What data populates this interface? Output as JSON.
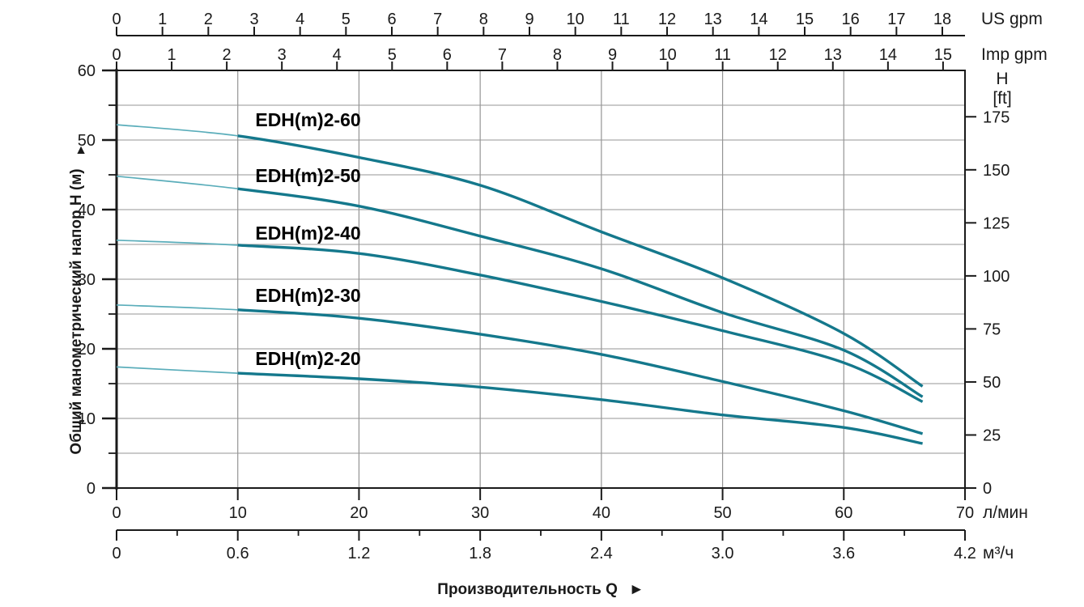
{
  "chart_data": {
    "type": "line",
    "title": "",
    "xlabel": "Производительность Q",
    "xlabel_arrow": "►",
    "axes": {
      "us": {
        "unit": "US gpm",
        "ticks": [
          0,
          1,
          2,
          3,
          4,
          5,
          6,
          7,
          8,
          9,
          10,
          11,
          12,
          13,
          14,
          15,
          16,
          17,
          18
        ]
      },
      "imp": {
        "unit": "Imp gpm",
        "ticks": [
          0,
          1,
          2,
          3,
          4,
          5,
          6,
          7,
          8,
          9,
          10,
          11,
          12,
          13,
          14,
          15
        ]
      },
      "lpm": {
        "unit": "л/мин",
        "range": [
          0,
          70
        ],
        "ticks": [
          0,
          10,
          20,
          30,
          40,
          50,
          60,
          70
        ]
      },
      "m3h": {
        "unit": "м³/ч",
        "range": [
          0,
          4.2
        ],
        "ticks": [
          "0",
          "0.6",
          "1.2",
          "1.8",
          "2.4",
          "3.0",
          "3.6",
          "4.2"
        ],
        "minor": [
          0.3,
          0.9,
          1.5,
          2.1,
          2.7,
          3.3,
          3.9
        ]
      },
      "left": {
        "label": "Общий манометрический напор H (м)",
        "arrow": "▲",
        "range": [
          0,
          60
        ],
        "ticks": [
          0,
          10,
          20,
          30,
          40,
          50,
          60
        ],
        "minor": [
          5,
          15,
          25,
          35,
          45,
          55
        ]
      },
      "right": {
        "label_top": "H",
        "label_unit": "[ft]",
        "ticks": [
          0,
          25,
          50,
          75,
          100,
          125,
          150,
          175
        ]
      }
    },
    "conversions": {
      "us_gpm_to_lpm": 3.785,
      "imp_gpm_to_lpm": 4.546,
      "ft_to_m": 0.3048
    },
    "grid": {
      "h_step_m": 5,
      "v_step_lpm": 10
    },
    "legend_position": "labels-on-plot",
    "series": [
      {
        "name": "EDH(m)2-60",
        "label_q": 15.8,
        "label_h": 52.9,
        "points": [
          [
            0,
            52.2
          ],
          [
            10,
            50.6
          ],
          [
            20,
            47.5
          ],
          [
            30,
            43.5
          ],
          [
            40,
            36.8
          ],
          [
            50,
            30.2
          ],
          [
            60,
            22.2
          ],
          [
            66.5,
            14.6
          ]
        ]
      },
      {
        "name": "EDH(m)2-50",
        "label_q": 15.8,
        "label_h": 44.9,
        "points": [
          [
            0,
            44.8
          ],
          [
            10,
            43.0
          ],
          [
            20,
            40.5
          ],
          [
            30,
            36.2
          ],
          [
            40,
            31.5
          ],
          [
            50,
            25.2
          ],
          [
            60,
            19.8
          ],
          [
            66.5,
            13.1
          ]
        ]
      },
      {
        "name": "EDH(m)2-40",
        "label_q": 15.8,
        "label_h": 36.6,
        "points": [
          [
            0,
            35.6
          ],
          [
            10,
            34.9
          ],
          [
            20,
            33.7
          ],
          [
            30,
            30.6
          ],
          [
            40,
            26.8
          ],
          [
            50,
            22.6
          ],
          [
            60,
            18.0
          ],
          [
            66.5,
            12.4
          ]
        ]
      },
      {
        "name": "EDH(m)2-30",
        "label_q": 15.8,
        "label_h": 27.7,
        "points": [
          [
            0,
            26.3
          ],
          [
            10,
            25.6
          ],
          [
            20,
            24.4
          ],
          [
            30,
            22.1
          ],
          [
            40,
            19.2
          ],
          [
            50,
            15.3
          ],
          [
            60,
            11.1
          ],
          [
            66.5,
            7.8
          ]
        ]
      },
      {
        "name": "EDH(m)2-20",
        "label_q": 15.8,
        "label_h": 18.6,
        "points": [
          [
            0,
            17.4
          ],
          [
            10,
            16.5
          ],
          [
            20,
            15.7
          ],
          [
            30,
            14.5
          ],
          [
            40,
            12.7
          ],
          [
            50,
            10.5
          ],
          [
            60,
            8.7
          ],
          [
            66.5,
            6.4
          ]
        ]
      }
    ],
    "thin_segment_until_lpm": 10,
    "colors": {
      "curve": "#14788c",
      "curve_thin": "#5aadba",
      "grid_h": "#ababab",
      "grid_v": "#949494",
      "axis": "#1a1a1a",
      "background": "#ffffff"
    }
  }
}
